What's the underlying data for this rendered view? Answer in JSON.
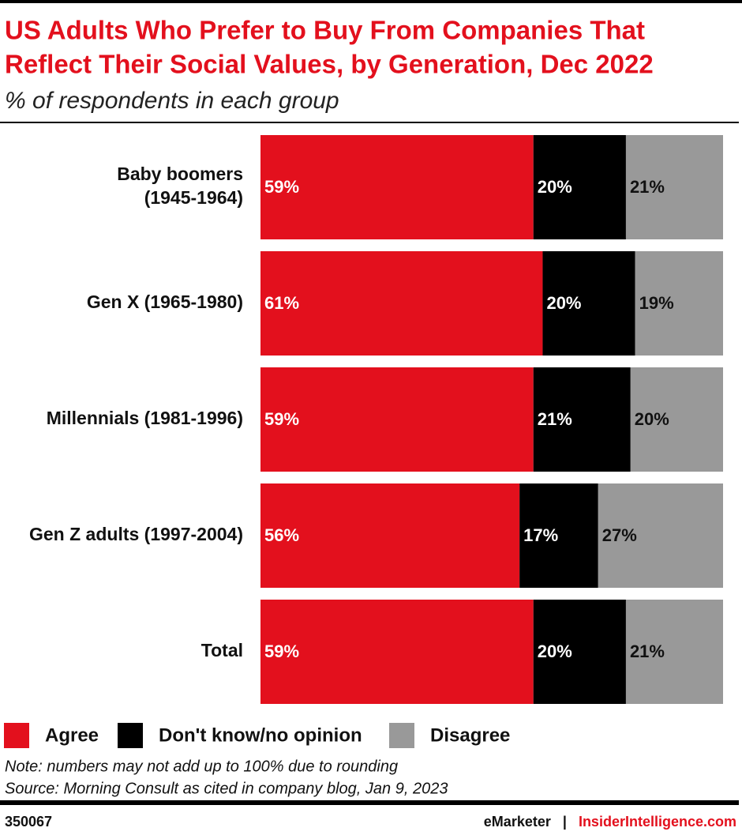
{
  "chart_data": {
    "type": "stacked-bar-horizontal",
    "title": [
      "US Adults Who Prefer to Buy From Companies That",
      "Reflect Their Social Values, by Generation, Dec 2022"
    ],
    "subtitle": "% of respondents in each group",
    "categories": [
      "Baby boomers\n(1945-1964)",
      "Gen X (1965-1980)",
      "Millennials (1981-1996)",
      "Gen Z adults (1997-2004)",
      "Total"
    ],
    "series": [
      {
        "name": "Agree",
        "color": "#e3101d",
        "label_color": "#ffffff",
        "values": [
          59,
          61,
          59,
          56,
          59
        ],
        "value_labels": [
          "59%",
          "61%",
          "59%",
          "56%",
          "59%"
        ]
      },
      {
        "name": "Don't know/no opinion",
        "color": "#000000",
        "label_color": "#ffffff",
        "values": [
          20,
          20,
          21,
          17,
          20
        ],
        "value_labels": [
          "20%",
          "20%",
          "21%",
          "17%",
          "20%"
        ]
      },
      {
        "name": "Disagree",
        "color": "#999999",
        "label_color": "#111111",
        "values": [
          21,
          19,
          20,
          27,
          21
        ],
        "value_labels": [
          "21%",
          "19%",
          "20%",
          "27%",
          "21%"
        ]
      }
    ],
    "xlim": [
      0,
      100
    ],
    "note": "Note: numbers may not add up to 100% due to rounding",
    "source": "Source: Morning Consult as cited in company blog, Jan 9, 2023",
    "footer": {
      "id": "350067",
      "brand": "eMarketer",
      "separator": "|",
      "site": "InsiderIntelligence.com"
    }
  }
}
